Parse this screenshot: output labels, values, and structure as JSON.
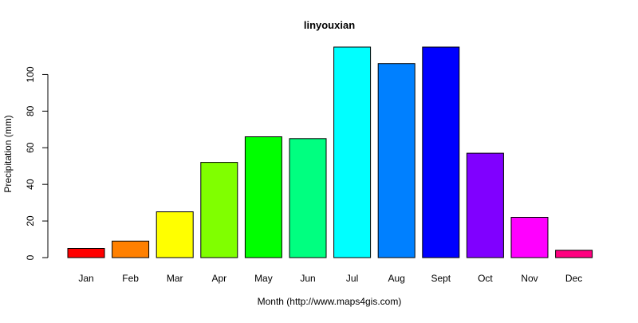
{
  "chart_data": {
    "type": "bar",
    "title": "linyouxian",
    "xlabel": "Month (http://www.maps4gis.com)",
    "ylabel": "Precipitation (mm)",
    "categories": [
      "Jan",
      "Feb",
      "Mar",
      "Apr",
      "May",
      "Jun",
      "Jul",
      "Aug",
      "Sept",
      "Oct",
      "Nov",
      "Dec"
    ],
    "values": [
      5,
      9,
      25,
      52,
      66,
      65,
      115,
      106,
      115,
      57,
      22,
      4
    ],
    "colors": [
      "#FF0000",
      "#FF8000",
      "#FFFF00",
      "#80FF00",
      "#00FF00",
      "#00FF80",
      "#00FFFF",
      "#0080FF",
      "#0000FF",
      "#8000FF",
      "#FF00FF",
      "#FF0080"
    ],
    "yticks": [
      0,
      20,
      40,
      60,
      80,
      100
    ],
    "ylim": [
      0,
      115
    ],
    "grid": false,
    "legend": "none"
  }
}
